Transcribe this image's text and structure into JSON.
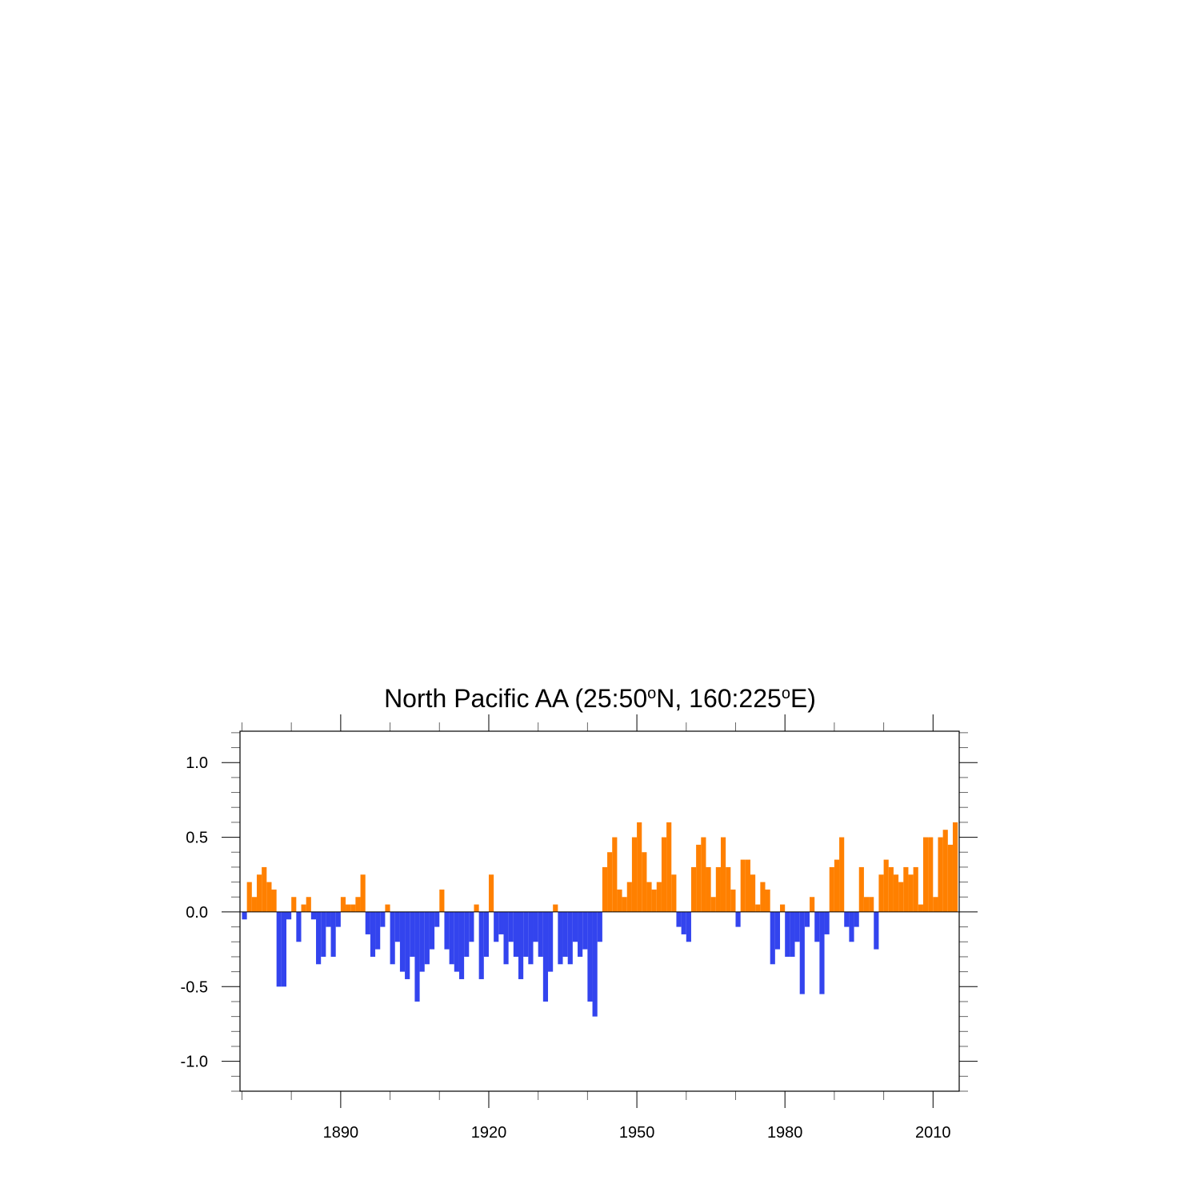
{
  "chart_data": {
    "type": "bar",
    "title": [
      {
        "text": "North Pacific AA (25:50"
      },
      {
        "text": "o",
        "sup": true
      },
      {
        "text": "N, 160:225"
      },
      {
        "text": "o",
        "sup": true
      },
      {
        "text": "E)"
      }
    ],
    "x": [
      1870,
      1871,
      1872,
      1873,
      1874,
      1875,
      1876,
      1877,
      1878,
      1879,
      1880,
      1881,
      1882,
      1883,
      1884,
      1885,
      1886,
      1887,
      1888,
      1889,
      1890,
      1891,
      1892,
      1893,
      1894,
      1895,
      1896,
      1897,
      1898,
      1899,
      1900,
      1901,
      1902,
      1903,
      1904,
      1905,
      1906,
      1907,
      1908,
      1909,
      1910,
      1911,
      1912,
      1913,
      1914,
      1915,
      1916,
      1917,
      1918,
      1919,
      1920,
      1921,
      1922,
      1923,
      1924,
      1925,
      1926,
      1927,
      1928,
      1929,
      1930,
      1931,
      1932,
      1933,
      1934,
      1935,
      1936,
      1937,
      1938,
      1939,
      1940,
      1941,
      1942,
      1943,
      1944,
      1945,
      1946,
      1947,
      1948,
      1949,
      1950,
      1951,
      1952,
      1953,
      1954,
      1955,
      1956,
      1957,
      1958,
      1959,
      1960,
      1961,
      1962,
      1963,
      1964,
      1965,
      1966,
      1967,
      1968,
      1969,
      1970,
      1971,
      1972,
      1973,
      1974,
      1975,
      1976,
      1977,
      1978,
      1979,
      1980,
      1981,
      1982,
      1983,
      1984,
      1985,
      1986,
      1987,
      1988,
      1989,
      1990,
      1991,
      1992,
      1993,
      1994,
      1995,
      1996,
      1997,
      1998,
      1999,
      2000,
      2001,
      2002,
      2003,
      2004,
      2005,
      2006,
      2007,
      2008,
      2009,
      2010,
      2011,
      2012,
      2013,
      2014
    ],
    "values": [
      -0.05,
      0.2,
      0.1,
      0.25,
      0.3,
      0.2,
      0.15,
      -0.5,
      -0.5,
      -0.05,
      0.1,
      -0.2,
      0.05,
      0.1,
      -0.05,
      -0.35,
      -0.3,
      -0.1,
      -0.3,
      -0.1,
      0.1,
      0.05,
      0.05,
      0.1,
      0.25,
      -0.15,
      -0.3,
      -0.25,
      -0.1,
      0.05,
      -0.35,
      -0.2,
      -0.4,
      -0.45,
      -0.3,
      -0.6,
      -0.4,
      -0.35,
      -0.25,
      -0.1,
      0.15,
      -0.25,
      -0.35,
      -0.4,
      -0.45,
      -0.3,
      -0.2,
      0.05,
      -0.45,
      -0.3,
      0.25,
      -0.2,
      -0.15,
      -0.35,
      -0.2,
      -0.3,
      -0.45,
      -0.3,
      -0.35,
      -0.2,
      -0.3,
      -0.6,
      -0.4,
      0.05,
      -0.35,
      -0.3,
      -0.35,
      -0.2,
      -0.3,
      -0.25,
      -0.6,
      -0.7,
      -0.2,
      0.3,
      0.4,
      0.5,
      0.15,
      0.1,
      0.2,
      0.5,
      0.6,
      0.4,
      0.2,
      0.15,
      0.2,
      0.5,
      0.6,
      0.25,
      -0.1,
      -0.15,
      -0.2,
      0.3,
      0.45,
      0.5,
      0.3,
      0.1,
      0.3,
      0.5,
      0.3,
      0.15,
      -0.1,
      0.35,
      0.35,
      0.25,
      0.05,
      0.2,
      0.15,
      -0.35,
      -0.25,
      0.05,
      -0.3,
      -0.3,
      -0.2,
      -0.55,
      -0.1,
      0.1,
      -0.2,
      -0.55,
      -0.15,
      0.3,
      0.35,
      0.5,
      -0.1,
      -0.2,
      -0.1,
      0.3,
      0.1,
      0.1,
      -0.25,
      0.25,
      0.35,
      0.3,
      0.25,
      0.2,
      0.3,
      0.25,
      0.3,
      0.05,
      0.5,
      0.5,
      0.1,
      0.5,
      0.55,
      0.45,
      0.6
    ],
    "positive_color": "#ff8000",
    "negative_color": "#3344ee",
    "xlim": [
      1869.6,
      2015.3
    ],
    "xticks": [
      1890,
      1920,
      1950,
      1980,
      2010
    ],
    "xminorticks": [
      1870,
      1880,
      1900,
      1910,
      1930,
      1940,
      1960,
      1970,
      1990,
      2000
    ],
    "ylim": [
      -1.2,
      1.21
    ],
    "yticks": [
      {
        "value": -1,
        "label": "-1.0"
      },
      {
        "value": -0.5,
        "label": "-0.5"
      },
      {
        "value": 0,
        "label": "0.0"
      },
      {
        "value": 0.5,
        "label": "0.5"
      },
      {
        "value": 1,
        "label": "1.0"
      }
    ],
    "yminorticks": [
      -1.2,
      -1.1,
      -0.9,
      -0.8,
      -0.7,
      -0.6,
      -0.4,
      -0.3,
      -0.2,
      -0.1,
      0.1,
      0.2,
      0.3,
      0.4,
      0.6,
      0.7,
      0.8,
      0.9,
      1.1,
      1.2
    ],
    "zero_line": true
  }
}
